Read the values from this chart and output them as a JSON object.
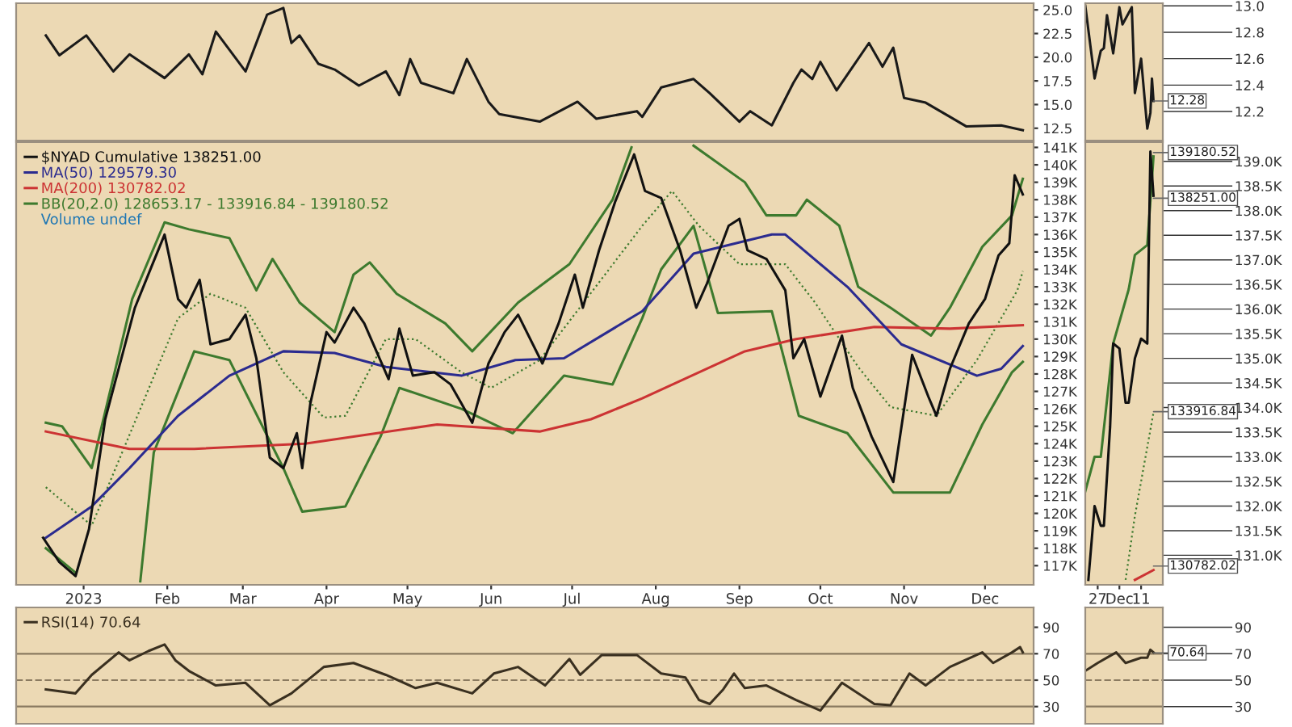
{
  "chart_data": [
    {
      "type": "line",
      "xlim": [
        "2022-12-07",
        "2023-12-19"
      ],
      "ylim": [
        11.2,
        25.7
      ],
      "yticks": [
        {
          "value": 12.5,
          "label": "12.5"
        },
        {
          "value": 15,
          "label": "15.0"
        },
        {
          "value": 17.5,
          "label": "17.5"
        },
        {
          "value": 20,
          "label": "20.0"
        },
        {
          "value": 22.5,
          "label": "22.5"
        },
        {
          "value": 25,
          "label": "25.0"
        }
      ],
      "tick_labels": "y",
      "series": [
        {
          "color": "#1a1a1a",
          "x": [
            "2022-12-18",
            "2022-12-23",
            "2023-01-02",
            "2023-01-12",
            "2023-01-18",
            "2023-01-31",
            "2023-02-09",
            "2023-02-14",
            "2023-02-19",
            "2023-03-02",
            "2023-03-10",
            "2023-03-16",
            "2023-03-19",
            "2023-03-22",
            "2023-03-29",
            "2023-04-04",
            "2023-04-13",
            "2023-04-23",
            "2023-04-28",
            "2023-05-02",
            "2023-05-06",
            "2023-05-18",
            "2023-05-23",
            "2023-05-31",
            "2023-06-04",
            "2023-06-19",
            "2023-07-03",
            "2023-07-10",
            "2023-07-25",
            "2023-07-27",
            "2023-08-03",
            "2023-08-15",
            "2023-08-21",
            "2023-09-01",
            "2023-09-05",
            "2023-09-13",
            "2023-09-21",
            "2023-09-24",
            "2023-09-28",
            "2023-10-01",
            "2023-10-07",
            "2023-10-13",
            "2023-10-19",
            "2023-10-24",
            "2023-10-28",
            "2023-11-01",
            "2023-11-09",
            "2023-11-18",
            "2023-11-24",
            "2023-12-07",
            "2023-12-15"
          ],
          "values": [
            22.3,
            20.2,
            22.3,
            18.5,
            20.3,
            17.8,
            20.3,
            18.2,
            22.7,
            18.5,
            24.5,
            25.2,
            21.5,
            22.3,
            19.3,
            18.7,
            17.0,
            18.5,
            16.0,
            19.8,
            17.3,
            16.2,
            19.8,
            15.3,
            14.0,
            13.2,
            15.3,
            13.5,
            14.3,
            13.7,
            16.8,
            17.7,
            16.2,
            13.2,
            14.3,
            12.8,
            17.3,
            18.7,
            17.7,
            19.5,
            16.5,
            19.0,
            21.5,
            19.0,
            21.0,
            15.7,
            15.2,
            13.7,
            12.7,
            12.8,
            12.3
          ]
        }
      ]
    },
    {
      "type": "line",
      "xlim": [
        "2023-11-23",
        "2023-12-18"
      ],
      "ylim": [
        11.98,
        13.02
      ],
      "yticks": [
        12.2,
        12.4,
        12.6,
        12.8,
        {
          "value": 13,
          "label": "13.0"
        }
      ],
      "tick_labels": "y",
      "annotations": [
        {
          "text": "12.28",
          "x": "2023-12-15",
          "y": 12.28
        }
      ],
      "series": [
        {
          "color": "#1a1a1a",
          "x": [
            "2023-11-23",
            "2023-11-26",
            "2023-11-28",
            "2023-11-29",
            "2023-11-30",
            "2023-12-02",
            "2023-12-04",
            "2023-12-05",
            "2023-12-08",
            "2023-12-09",
            "2023-12-11",
            "2023-12-13",
            "2023-12-14",
            "2023-12-14T12:00",
            "2023-12-15"
          ],
          "values": [
            13.0,
            12.45,
            12.66,
            12.68,
            12.93,
            12.64,
            12.99,
            12.86,
            12.99,
            12.34,
            12.6,
            12.07,
            12.19,
            12.45,
            12.28
          ]
        }
      ]
    },
    {
      "type": "line",
      "xlim": [
        "2022-12-07",
        "2023-12-19"
      ],
      "ylim": [
        115.9,
        141.3
      ],
      "yticks": [
        {
          "value": 117,
          "label": "117K"
        },
        {
          "value": 118,
          "label": "118K"
        },
        {
          "value": 119,
          "label": "119K"
        },
        {
          "value": 120,
          "label": "120K"
        },
        {
          "value": 121,
          "label": "121K"
        },
        {
          "value": 122,
          "label": "122K"
        },
        {
          "value": 123,
          "label": "123K"
        },
        {
          "value": 124,
          "label": "124K"
        },
        {
          "value": 125,
          "label": "125K"
        },
        {
          "value": 126,
          "label": "126K"
        },
        {
          "value": 127,
          "label": "127K"
        },
        {
          "value": 128,
          "label": "128K"
        },
        {
          "value": 129,
          "label": "129K"
        },
        {
          "value": 130,
          "label": "130K"
        },
        {
          "value": 131,
          "label": "131K"
        },
        {
          "value": 132,
          "label": "132K"
        },
        {
          "value": 133,
          "label": "133K"
        },
        {
          "value": 134,
          "label": "134K"
        },
        {
          "value": 135,
          "label": "135K"
        },
        {
          "value": 136,
          "label": "136K"
        },
        {
          "value": 137,
          "label": "137K"
        },
        {
          "value": 138,
          "label": "138K"
        },
        {
          "value": 139,
          "label": "139K"
        },
        {
          "value": 140,
          "label": "140K"
        },
        {
          "value": 141,
          "label": "141K"
        }
      ],
      "xticks": [
        {
          "value": "2023-01-01",
          "label": "2023"
        },
        {
          "value": "2023-02-01",
          "label": "Feb"
        },
        {
          "value": "2023-03-01",
          "label": "Mar"
        },
        {
          "value": "2023-04-01",
          "label": "Apr"
        },
        {
          "value": "2023-05-01",
          "label": "May"
        },
        {
          "value": "2023-06-01",
          "label": "Jun"
        },
        {
          "value": "2023-07-01",
          "label": "Jul"
        },
        {
          "value": "2023-08-01",
          "label": "Aug"
        },
        {
          "value": "2023-09-01",
          "label": "Sep"
        },
        {
          "value": "2023-10-01",
          "label": "Oct"
        },
        {
          "value": "2023-11-01",
          "label": "Nov"
        },
        {
          "value": "2023-12-01",
          "label": "Dec"
        }
      ],
      "legend": "top left",
      "annotations": [
        "Volume undef"
      ],
      "series": [
        {
          "name": "BB(20,2.0) 128653.17 - 133916.84 - 139180.52",
          "color": "#3d7a2e",
          "x": [
            "2022-12-18",
            "2022-12-24",
            "2023-01-04",
            "2023-01-19",
            "2023-01-31",
            "2023-02-09",
            "2023-02-24",
            "2023-03-06",
            "2023-03-12",
            "2023-03-22",
            "2023-04-04",
            "2023-04-11",
            "2023-04-17",
            "2023-04-27",
            "2023-05-15",
            "2023-05-25",
            "2023-06-11",
            "2023-06-30",
            "2023-07-16",
            "2023-07-23",
            "2023-08-05",
            "2023-08-15",
            "2023-09-03",
            "2023-09-11",
            "2023-09-22",
            "2023-09-26",
            "2023-10-08",
            "2023-10-15",
            "2023-10-27",
            "2023-11-11",
            "2023-11-18",
            "2023-11-30",
            "2023-12-11",
            "2023-12-15"
          ],
          "values": [
            125.2,
            125.0,
            122.6,
            132.3,
            136.7,
            136.3,
            135.8,
            132.8,
            134.6,
            132.1,
            130.4,
            133.7,
            134.4,
            132.6,
            130.9,
            129.3,
            132.1,
            134.3,
            138.0,
            141.0,
            null,
            141.1,
            139.0,
            137.1,
            137.1,
            138.0,
            136.5,
            133.0,
            131.8,
            130.2,
            131.8,
            135.3,
            137.1,
            139.2
          ]
        },
        {
          "color": "#3d7a2e",
          "line_style": "dotted",
          "x": [
            "2022-12-18",
            "2023-01-04",
            "2023-02-05",
            "2023-02-17",
            "2023-03-02",
            "2023-03-16",
            "2023-03-31",
            "2023-04-08",
            "2023-04-23",
            "2023-05-04",
            "2023-05-21",
            "2023-06-01",
            "2023-06-19",
            "2023-07-27",
            "2023-08-07",
            "2023-08-17",
            "2023-09-01",
            "2023-09-18",
            "2023-09-29",
            "2023-10-15",
            "2023-10-27",
            "2023-11-13",
            "2023-11-28",
            "2023-12-13",
            "2023-12-15"
          ],
          "values": [
            121.5,
            119.3,
            131.2,
            132.6,
            131.8,
            128.1,
            125.5,
            125.6,
            130.0,
            130.0,
            128.1,
            127.2,
            128.8,
            136.5,
            138.5,
            136.5,
            134.3,
            134.3,
            132.1,
            128.4,
            126.1,
            125.6,
            128.8,
            132.8,
            133.9
          ]
        },
        {
          "color": "#3d7a2e",
          "x": [
            "2022-12-18",
            "2022-12-29",
            "2023-01-10",
            "2023-01-22",
            "2023-01-27",
            "2023-02-11",
            "2023-02-24",
            "2023-03-16",
            "2023-03-23",
            "2023-04-08",
            "2023-04-21",
            "2023-04-28",
            "2023-05-21",
            "2023-06-09",
            "2023-06-28",
            "2023-07-16",
            "2023-07-27",
            "2023-08-03",
            "2023-08-15",
            "2023-08-24",
            "2023-09-13",
            "2023-09-23",
            "2023-10-11",
            "2023-10-28",
            "2023-11-18",
            "2023-11-30",
            "2023-12-11",
            "2023-12-15"
          ],
          "values": [
            118.0,
            116.6,
            null,
            116.1,
            123.5,
            129.3,
            128.8,
            122.6,
            120.1,
            120.4,
            124.4,
            127.2,
            126.0,
            124.6,
            127.9,
            127.4,
            131.2,
            134.0,
            136.5,
            131.5,
            131.6,
            125.6,
            124.6,
            121.2,
            121.2,
            125.1,
            128.1,
            128.7
          ]
        },
        {
          "name": "MA(200) 130782.02",
          "color": "#cc3333",
          "x": [
            "2022-12-18",
            "2023-01-18",
            "2023-02-11",
            "2023-03-24",
            "2023-05-12",
            "2023-06-19",
            "2023-07-08",
            "2023-07-27",
            "2023-09-03",
            "2023-09-22",
            "2023-10-21",
            "2023-11-18",
            "2023-12-15"
          ],
          "values": [
            124.7,
            123.7,
            123.7,
            124.0,
            125.1,
            124.7,
            125.4,
            126.6,
            129.3,
            130.0,
            130.7,
            130.6,
            130.8
          ]
        },
        {
          "name": "MA(50) 129579.30",
          "color": "#2b2b8f",
          "x": [
            "2022-12-18",
            "2023-01-04",
            "2023-01-18",
            "2023-02-05",
            "2023-02-24",
            "2023-03-16",
            "2023-04-04",
            "2023-04-23",
            "2023-05-21",
            "2023-06-10",
            "2023-06-28",
            "2023-07-27",
            "2023-08-15",
            "2023-09-13",
            "2023-09-18",
            "2023-10-11",
            "2023-10-31",
            "2023-11-28",
            "2023-12-07",
            "2023-12-15"
          ],
          "values": [
            118.6,
            120.4,
            122.6,
            125.6,
            127.9,
            129.3,
            129.2,
            128.4,
            127.9,
            128.8,
            128.9,
            131.6,
            134.9,
            136.0,
            136.0,
            133.0,
            129.7,
            127.9,
            128.3,
            129.6
          ]
        },
        {
          "name": "$NYAD Cumulative 138251.00",
          "color": "#111111",
          "x": [
            "2022-12-17",
            "2022-12-23",
            "2022-12-29",
            "2023-01-03",
            "2023-01-09",
            "2023-01-15",
            "2023-01-20",
            "2023-01-26",
            "2023-01-31",
            "2023-02-05",
            "2023-02-08",
            "2023-02-13",
            "2023-02-17",
            "2023-02-24",
            "2023-03-02",
            "2023-03-06",
            "2023-03-11",
            "2023-03-16",
            "2023-03-21",
            "2023-03-23",
            "2023-03-26",
            "2023-04-01",
            "2023-04-04",
            "2023-04-11",
            "2023-04-15",
            "2023-04-24",
            "2023-04-28",
            "2023-05-03",
            "2023-05-11",
            "2023-05-17",
            "2023-05-21",
            "2023-05-25",
            "2023-05-31",
            "2023-06-06",
            "2023-06-11",
            "2023-06-20",
            "2023-06-26",
            "2023-07-02",
            "2023-07-05",
            "2023-07-11",
            "2023-07-17",
            "2023-07-24",
            "2023-07-28",
            "2023-08-03",
            "2023-08-10",
            "2023-08-16",
            "2023-08-20",
            "2023-08-28",
            "2023-09-01",
            "2023-09-04",
            "2023-09-11",
            "2023-09-18",
            "2023-09-21",
            "2023-09-25",
            "2023-10-01",
            "2023-10-09",
            "2023-10-13",
            "2023-10-20",
            "2023-10-28",
            "2023-11-04",
            "2023-11-10",
            "2023-11-13",
            "2023-11-18",
            "2023-11-25",
            "2023-12-01",
            "2023-12-06",
            "2023-12-10",
            "2023-12-12",
            "2023-12-15"
          ],
          "values": [
            118.6,
            117.2,
            116.4,
            119.1,
            125.4,
            128.9,
            131.8,
            134.1,
            136.0,
            132.3,
            131.8,
            133.4,
            129.7,
            130.0,
            131.4,
            128.9,
            123.2,
            122.6,
            124.6,
            122.6,
            126.3,
            130.4,
            129.8,
            131.8,
            130.9,
            127.7,
            130.6,
            127.9,
            128.1,
            127.4,
            126.3,
            125.2,
            128.6,
            130.4,
            131.4,
            128.6,
            130.9,
            133.7,
            131.8,
            135.1,
            137.9,
            140.6,
            138.5,
            138.1,
            135.1,
            131.8,
            133.2,
            136.5,
            136.9,
            135.1,
            134.6,
            132.8,
            128.9,
            130.0,
            126.7,
            130.2,
            127.2,
            124.4,
            121.8,
            129.1,
            126.7,
            125.6,
            128.3,
            130.9,
            132.3,
            134.8,
            135.5,
            139.4,
            138.3
          ]
        }
      ]
    },
    {
      "type": "line",
      "xlim": [
        "2023-11-23",
        "2023-12-18"
      ],
      "ylim": [
        130.4,
        139.39
      ],
      "yticks": [
        {
          "value": 131.0,
          "label": "131.0K"
        },
        {
          "value": 131.5,
          "label": "131.5K"
        },
        {
          "value": 132.0,
          "label": "132.0K"
        },
        {
          "value": 132.5,
          "label": "132.5K"
        },
        {
          "value": 133.0,
          "label": "133.0K"
        },
        {
          "value": 133.5,
          "label": "133.5K"
        },
        {
          "value": 134.0,
          "label": "134.0K"
        },
        {
          "value": 134.5,
          "label": "134.5K"
        },
        {
          "value": 135.0,
          "label": "135.0K"
        },
        {
          "value": 135.5,
          "label": "135.5K"
        },
        {
          "value": 136.0,
          "label": "136.0K"
        },
        {
          "value": 136.5,
          "label": "136.5K"
        },
        {
          "value": 137.0,
          "label": "137.0K"
        },
        {
          "value": 137.5,
          "label": "137.5K"
        },
        {
          "value": 138.0,
          "label": "138.0K"
        },
        {
          "value": 138.5,
          "label": "138.5K"
        },
        {
          "value": 139.0,
          "label": "139.0K"
        }
      ],
      "xticks": [
        {
          "value": "2023-11-27",
          "label": "27"
        },
        {
          "value": "2023-12-04",
          "label": "Dec"
        },
        {
          "value": "2023-12-11",
          "label": "11"
        }
      ],
      "annotations": [
        {
          "text": "139180.52",
          "x": "2023-12-15",
          "y": 139.18
        },
        {
          "text": "138251.00",
          "x": "2023-12-15",
          "y": 138.251
        },
        {
          "text": "133916.84",
          "x": "2023-12-15",
          "y": 133.917
        },
        {
          "text": "130782.02",
          "x": "2023-12-15",
          "y": 130.782
        }
      ],
      "series": [
        {
          "color": "#3d7a2e",
          "x": [
            "2023-11-23",
            "2023-11-26",
            "2023-11-28",
            "2023-12-02",
            "2023-12-07",
            "2023-12-09",
            "2023-12-13",
            "2023-12-15"
          ],
          "values": [
            132.3,
            133.0,
            133.0,
            135.3,
            136.4,
            137.1,
            137.3,
            139.1
          ]
        },
        {
          "color": "#3d7a2e",
          "line_style": "dotted",
          "x": [
            "2023-12-06",
            "2023-12-09",
            "2023-12-15"
          ],
          "values": [
            130.5,
            131.8,
            133.9
          ]
        },
        {
          "color": "#cc3333",
          "x": [
            "2023-12-09",
            "2023-12-15"
          ],
          "values": [
            130.5,
            130.7
          ]
        },
        {
          "color": "#111111",
          "x": [
            "2023-11-24",
            "2023-11-26",
            "2023-11-28",
            "2023-11-29",
            "2023-12-01",
            "2023-12-02",
            "2023-12-04",
            "2023-12-06",
            "2023-12-07",
            "2023-12-09",
            "2023-12-11",
            "2023-12-13",
            "2023-12-14",
            "2023-12-15"
          ],
          "values": [
            130.5,
            132.0,
            131.6,
            131.6,
            133.6,
            135.3,
            135.2,
            134.1,
            134.1,
            135.0,
            135.4,
            135.3,
            139.2,
            138.3
          ]
        }
      ]
    },
    {
      "type": "line",
      "xlim": [
        "2022-12-07",
        "2023-12-19"
      ],
      "ylim": [
        17,
        105
      ],
      "yticks": [
        30,
        50,
        70,
        90
      ],
      "tick_labels": "y",
      "legend": "top left",
      "ref_lines": [
        {
          "axis": "y",
          "value": 70,
          "color": "#8a7a60"
        },
        {
          "axis": "y",
          "value": 50,
          "color": "#8a7a60",
          "line_style": "dashed"
        },
        {
          "axis": "y",
          "value": 30,
          "color": "#8a7a60"
        }
      ],
      "series": [
        {
          "name": "RSI(14) 70.64",
          "color": "#3a3020",
          "x": [
            "2022-12-18",
            "2022-12-29",
            "2023-01-04",
            "2023-01-14",
            "2023-01-18",
            "2023-01-25",
            "2023-01-31",
            "2023-02-04",
            "2023-02-09",
            "2023-02-19",
            "2023-03-02",
            "2023-03-11",
            "2023-03-19",
            "2023-03-31",
            "2023-04-11",
            "2023-04-23",
            "2023-05-04",
            "2023-05-12",
            "2023-05-25",
            "2023-06-02",
            "2023-06-11",
            "2023-06-21",
            "2023-06-30",
            "2023-07-04",
            "2023-07-12",
            "2023-07-25",
            "2023-08-03",
            "2023-08-12",
            "2023-08-17",
            "2023-08-21",
            "2023-08-26",
            "2023-08-30",
            "2023-09-03",
            "2023-09-11",
            "2023-09-22",
            "2023-10-01",
            "2023-10-09",
            "2023-10-21",
            "2023-10-27",
            "2023-11-03",
            "2023-11-09",
            "2023-11-18",
            "2023-11-30",
            "2023-12-04",
            "2023-12-11",
            "2023-12-14",
            "2023-12-15"
          ],
          "values": [
            43,
            40,
            54,
            71,
            65,
            72,
            77,
            65,
            57,
            46,
            48,
            31,
            40,
            60,
            63,
            54,
            44,
            48,
            40,
            55,
            60,
            46,
            66,
            54,
            69,
            69,
            55,
            52,
            35,
            32,
            43,
            55,
            44,
            46,
            35,
            27,
            48,
            32,
            31,
            55,
            46,
            60,
            71,
            63,
            71,
            75,
            71
          ]
        }
      ]
    },
    {
      "type": "line",
      "xlim": [
        "2023-11-23",
        "2023-12-18"
      ],
      "ylim": [
        17,
        105
      ],
      "yticks": [
        30,
        50,
        70,
        90
      ],
      "tick_labels": "y",
      "ref_lines": [
        {
          "axis": "y",
          "value": 70,
          "color": "#8a7a60"
        },
        {
          "axis": "y",
          "value": 50,
          "color": "#8a7a60",
          "line_style": "dashed"
        },
        {
          "axis": "y",
          "value": 30,
          "color": "#8a7a60"
        }
      ],
      "annotations": [
        {
          "text": "70.64",
          "x": "2023-12-15",
          "y": 70.64
        }
      ],
      "series": [
        {
          "color": "#3a3020",
          "x": [
            "2023-11-23",
            "2023-11-27",
            "2023-11-30",
            "2023-12-03",
            "2023-12-06",
            "2023-12-11",
            "2023-12-13",
            "2023-12-14",
            "2023-12-15"
          ],
          "values": [
            57,
            63,
            67,
            71,
            63,
            67,
            67,
            73,
            71
          ]
        }
      ]
    }
  ]
}
